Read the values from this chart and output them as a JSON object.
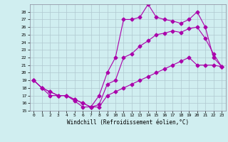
{
  "xlabel": "Windchill (Refroidissement éolien,°C)",
  "background_color": "#d0eef0",
  "grid_color": "#b0c8d0",
  "line_color": "#aa00aa",
  "xlim": [
    -0.5,
    23.5
  ],
  "ylim": [
    15,
    29
  ],
  "xticks": [
    0,
    1,
    2,
    3,
    4,
    5,
    6,
    7,
    8,
    9,
    10,
    11,
    12,
    13,
    14,
    15,
    16,
    17,
    18,
    19,
    20,
    21,
    22,
    23
  ],
  "yticks": [
    15,
    16,
    17,
    18,
    19,
    20,
    21,
    22,
    23,
    24,
    25,
    26,
    27,
    28
  ],
  "line1_x": [
    0,
    1,
    2,
    3,
    4,
    5,
    6,
    7,
    8,
    9,
    10,
    11,
    12,
    13,
    14,
    15,
    16,
    17,
    18,
    19,
    20,
    21,
    22,
    23
  ],
  "line1_y": [
    19,
    18,
    17,
    17,
    17,
    16.3,
    15.5,
    15.5,
    17,
    20,
    22,
    27,
    27,
    27.3,
    29,
    27.3,
    27,
    26.8,
    26.5,
    27,
    28,
    26,
    22,
    20.8
  ],
  "line2_x": [
    0,
    1,
    2,
    3,
    4,
    5,
    6,
    7,
    8,
    9,
    10,
    11,
    12,
    13,
    14,
    15,
    16,
    17,
    18,
    19,
    20,
    21,
    22,
    23
  ],
  "line2_y": [
    19,
    18,
    17.5,
    17,
    17,
    16.5,
    16,
    15.5,
    15.8,
    18.5,
    19,
    22,
    22.5,
    23.5,
    24.2,
    25,
    25.2,
    25.5,
    25.3,
    25.8,
    26,
    24.5,
    22.5,
    20.8
  ],
  "line3_x": [
    0,
    1,
    2,
    3,
    4,
    5,
    6,
    7,
    8,
    9,
    10,
    11,
    12,
    13,
    14,
    15,
    16,
    17,
    18,
    19,
    20,
    21,
    22,
    23
  ],
  "line3_y": [
    19,
    18,
    17.5,
    17,
    17,
    16.5,
    16,
    15.5,
    15.5,
    17,
    17.5,
    18,
    18.5,
    19,
    19.5,
    20,
    20.5,
    21,
    21.5,
    22,
    21,
    21,
    21,
    20.8
  ]
}
